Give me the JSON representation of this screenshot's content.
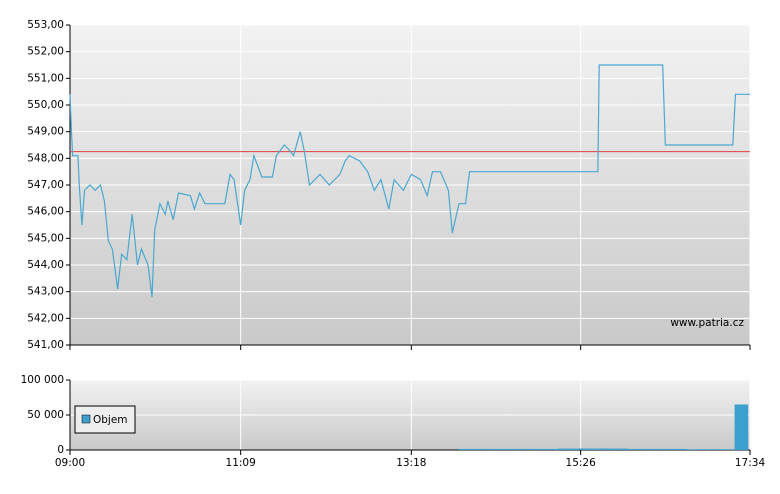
{
  "chart_data": [
    {
      "type": "line",
      "watermark": "www.patria.cz",
      "x": [
        "09:00",
        "09:01",
        "09:02",
        "09:06",
        "09:07",
        "09:09",
        "09:11",
        "09:15",
        "09:19",
        "09:23",
        "09:26",
        "09:29",
        "09:32",
        "09:36",
        "09:39",
        "09:43",
        "09:47",
        "09:51",
        "09:54",
        "09:59",
        "10:02",
        "10:04",
        "10:08",
        "10:12",
        "10:14",
        "10:18",
        "10:22",
        "10:31",
        "10:34",
        "10:38",
        "10:42",
        "10:57",
        "11:01",
        "11:04",
        "11:09",
        "11:12",
        "11:16",
        "11:19",
        "11:25",
        "11:33",
        "11:36",
        "11:42",
        "11:46",
        "11:49",
        "11:54",
        "11:57",
        "12:01",
        "12:09",
        "12:16",
        "12:24",
        "12:28",
        "12:31",
        "12:39",
        "12:45",
        "12:50",
        "12:55",
        "13:01",
        "13:05",
        "13:12",
        "13:18",
        "13:25",
        "13:30",
        "13:34",
        "13:40",
        "13:46",
        "13:49",
        "13:54",
        "13:59",
        "14:02",
        "15:39",
        "15:40",
        "16:28",
        "16:30",
        "17:21",
        "17:23",
        "17:34"
      ],
      "series": [
        {
          "color": "#4aa8d0",
          "values": [
            550.4,
            549.1,
            548.1,
            548.1,
            547.0,
            545.5,
            546.8,
            547.0,
            546.8,
            547.0,
            546.4,
            544.9,
            544.6,
            543.1,
            544.4,
            544.2,
            545.9,
            544.0,
            544.6,
            544.0,
            542.8,
            545.3,
            546.3,
            545.9,
            546.4,
            545.7,
            546.7,
            546.6,
            546.1,
            546.7,
            546.3,
            546.3,
            547.4,
            547.2,
            545.5,
            546.8,
            547.2,
            548.1,
            547.3,
            547.3,
            548.1,
            548.5,
            548.3,
            548.1,
            549.0,
            548.3,
            547.0,
            547.4,
            547.0,
            547.4,
            547.9,
            548.1,
            547.9,
            547.5,
            546.8,
            547.2,
            546.1,
            547.2,
            546.8,
            547.4,
            547.2,
            546.6,
            547.5,
            547.5,
            546.8,
            545.2,
            546.3,
            546.3,
            547.5,
            547.5,
            551.5,
            551.5,
            548.5,
            548.5,
            550.4,
            550.4
          ]
        }
      ],
      "reference_line": 548.25,
      "reference_color": "#e04040",
      "xlim": [
        "09:00",
        "17:34"
      ],
      "xticks": [
        "09:00",
        "11:09",
        "13:18",
        "15:26",
        "17:34"
      ],
      "ylim": [
        541,
        553
      ],
      "yticks": [
        {
          "value": 541,
          "label": "541,00"
        },
        {
          "value": 542,
          "label": "542,00"
        },
        {
          "value": 543,
          "label": "543,00"
        },
        {
          "value": 544,
          "label": "544,00"
        },
        {
          "value": 545,
          "label": "545,00"
        },
        {
          "value": 546,
          "label": "546,00"
        },
        {
          "value": 547,
          "label": "547,00"
        },
        {
          "value": 548,
          "label": "548,00"
        },
        {
          "value": 549,
          "label": "549,00"
        },
        {
          "value": 550,
          "label": "550,00"
        },
        {
          "value": 551,
          "label": "551,00"
        },
        {
          "value": 552,
          "label": "552,00"
        },
        {
          "value": 553,
          "label": "553,00"
        }
      ],
      "grid": true
    },
    {
      "type": "bar",
      "x": [
        "14:05",
        "14:20",
        "14:35",
        "14:50",
        "15:05",
        "15:20",
        "15:35",
        "15:50",
        "16:05",
        "16:20",
        "16:35",
        "16:50",
        "17:05",
        "17:15",
        "17:25",
        "17:30"
      ],
      "series": [
        {
          "name": "Objem",
          "color": "#3d9fd0",
          "values": [
            1500,
            1500,
            1500,
            1500,
            1500,
            2000,
            2000,
            2000,
            1500,
            1500,
            1500,
            1000,
            1000,
            1000,
            65000,
            65000
          ]
        }
      ],
      "xlim": [
        "09:00",
        "17:34"
      ],
      "xticks": [
        "09:00",
        "11:09",
        "13:18",
        "15:26",
        "17:34"
      ],
      "ylim": [
        0,
        100000
      ],
      "yticks": [
        0,
        {
          "value": 50000,
          "label": "50 000"
        },
        {
          "value": 100000,
          "label": "100 000"
        }
      ],
      "grid": true,
      "legend": "lower-left"
    }
  ]
}
